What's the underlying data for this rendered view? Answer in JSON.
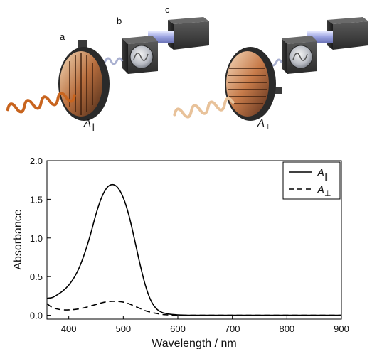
{
  "illustration": {
    "labels": {
      "a": "a",
      "b": "b",
      "c": "c"
    },
    "left_caption": "A",
    "left_subscript": "∥",
    "right_caption": "A",
    "right_subscript": "⊥",
    "colors": {
      "wave_left": "#c8641e",
      "wave_right": "#e8c29a",
      "wave_mid": "#a9b0d0",
      "housing": "#3b3b3b",
      "beam": "#aab2e8"
    }
  },
  "chart_data": {
    "type": "line",
    "xlabel": "Wavelength / nm",
    "ylabel": "Absorbance",
    "xlim": [
      360,
      900
    ],
    "ylim": [
      -0.05,
      2.0
    ],
    "x_ticks": [
      400,
      500,
      600,
      700,
      800,
      900
    ],
    "y_ticks": [
      0.0,
      0.5,
      1.0,
      1.5,
      2.0
    ],
    "x_tick_labels": [
      "400",
      "500",
      "600",
      "700",
      "800",
      "900"
    ],
    "y_tick_labels": [
      "0.0",
      "0.5",
      "1.0",
      "1.5",
      "2.0"
    ],
    "grid": false,
    "legend": "top-right",
    "series": [
      {
        "name": "A",
        "subscript": "∥",
        "style": "solid",
        "x": [
          360,
          370,
          380,
          390,
          400,
          410,
          420,
          430,
          440,
          450,
          460,
          470,
          480,
          490,
          500,
          510,
          520,
          530,
          540,
          550,
          560,
          570,
          580,
          590,
          600,
          620,
          650,
          700,
          750,
          800,
          850,
          900
        ],
        "y": [
          0.22,
          0.23,
          0.27,
          0.32,
          0.39,
          0.49,
          0.63,
          0.82,
          1.05,
          1.31,
          1.52,
          1.65,
          1.69,
          1.65,
          1.52,
          1.3,
          1.0,
          0.68,
          0.4,
          0.2,
          0.09,
          0.04,
          0.02,
          0.01,
          0.005,
          0.0,
          0.0,
          0.0,
          0.0,
          0.0,
          0.0,
          0.0
        ]
      },
      {
        "name": "A",
        "subscript": "⊥",
        "style": "dashed",
        "x": [
          360,
          370,
          380,
          390,
          400,
          410,
          420,
          430,
          440,
          450,
          460,
          470,
          480,
          490,
          500,
          510,
          520,
          530,
          540,
          550,
          560,
          570,
          580,
          590,
          600,
          650,
          700,
          750,
          800,
          850,
          900
        ],
        "y": [
          0.15,
          0.1,
          0.08,
          0.07,
          0.07,
          0.075,
          0.085,
          0.1,
          0.12,
          0.14,
          0.16,
          0.175,
          0.18,
          0.178,
          0.17,
          0.15,
          0.12,
          0.09,
          0.06,
          0.04,
          0.025,
          0.012,
          0.006,
          0.003,
          0.0,
          0.0,
          0.0,
          0.0,
          0.0,
          0.0,
          0.0
        ]
      }
    ]
  }
}
